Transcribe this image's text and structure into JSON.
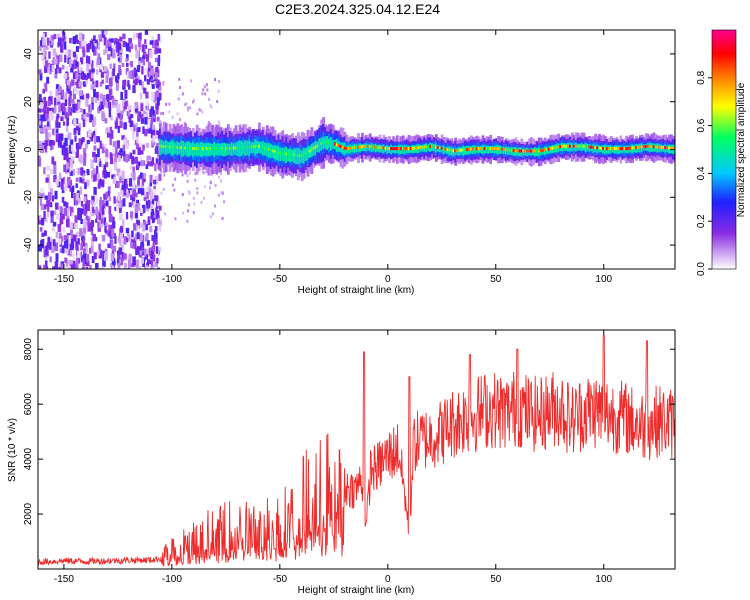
{
  "page": {
    "title": "C2E3.2024.325.04.12.E24"
  },
  "chart_data": [
    {
      "type": "heatmap",
      "xlabel": "Height of straight line (km)",
      "ylabel": "Frequency (Hz)",
      "xlim": [
        -162,
        133
      ],
      "ylim": [
        -50,
        50
      ],
      "xticks": [
        -150,
        -100,
        -50,
        0,
        50,
        100
      ],
      "yticks": [
        -40,
        -20,
        0,
        20,
        40
      ],
      "colorbar": {
        "label": "Normalized spectral amplitude",
        "range": [
          0,
          1
        ],
        "ticks": [
          0.0,
          0.2,
          0.4,
          0.6,
          0.8
        ],
        "colormap": [
          "#ffffff",
          "#d9b8f5",
          "#8a2be2",
          "#2020ff",
          "#00c8ff",
          "#00ff60",
          "#ffff00",
          "#ff8000",
          "#ff0000",
          "#ff0090"
        ]
      },
      "regions": [
        {
          "x_range": [
            -162,
            -106
          ],
          "y_range": [
            -50,
            50
          ],
          "amplitude": 0.25
        },
        {
          "x_range": [
            -106,
            133
          ],
          "y_range": [
            -6,
            7
          ],
          "amplitude": 0.6
        }
      ],
      "ridge": {
        "x": [
          -106,
          -90,
          -75,
          -60,
          -50,
          -40,
          -35,
          -30,
          -25,
          -20,
          -10,
          0,
          10,
          20,
          30,
          40,
          50,
          60,
          70,
          80,
          90,
          100,
          110,
          120,
          133
        ],
        "y": [
          1,
          0,
          0,
          1,
          -2,
          -3,
          0,
          3,
          2,
          0,
          1,
          0,
          0,
          1,
          -1,
          0,
          0,
          -1,
          -1,
          1,
          1,
          0,
          0,
          1,
          0
        ]
      }
    },
    {
      "type": "line",
      "xlabel": "Height of straight line (km)",
      "ylabel": "SNR (10 * v/v)",
      "xlim": [
        -162,
        133
      ],
      "ylim": [
        0,
        8700
      ],
      "xticks": [
        -150,
        -100,
        -50,
        0,
        50,
        100
      ],
      "yticks": [
        2000,
        4000,
        6000,
        8000
      ],
      "color": "#ee2b2b",
      "series": [
        {
          "x": [
            -162,
            -150,
            -140,
            -130,
            -120,
            -110,
            -105,
            -100,
            -95,
            -90,
            -85,
            -80,
            -75,
            -70,
            -65,
            -60,
            -55,
            -50,
            -45,
            -40,
            -35,
            -30,
            -25,
            -20,
            -15,
            -12,
            -10,
            -8,
            -5,
            0,
            5,
            8,
            10,
            12,
            15,
            20,
            25,
            30,
            35,
            40,
            45,
            50,
            55,
            60,
            65,
            70,
            75,
            80,
            85,
            90,
            95,
            100,
            105,
            110,
            115,
            120,
            125,
            133
          ],
          "y": [
            250,
            300,
            280,
            300,
            320,
            330,
            380,
            800,
            1000,
            1100,
            1400,
            1300,
            1500,
            1500,
            1600,
            1300,
            1700,
            1800,
            2000,
            2500,
            2800,
            3000,
            3100,
            3000,
            2900,
            3300,
            1500,
            3600,
            3700,
            4100,
            4400,
            2600,
            1200,
            4600,
            4700,
            4800,
            5000,
            5300,
            5500,
            5600,
            5800,
            5800,
            5700,
            5900,
            5700,
            5600,
            5800,
            5900,
            5400,
            5700,
            5800,
            5700,
            5600,
            5500,
            5300,
            5200,
            5400,
            5300
          ]
        }
      ],
      "spikes": [
        {
          "x": -11,
          "y": 7900
        },
        {
          "x": 10,
          "y": 7000
        },
        {
          "x": 38,
          "y": 7800
        },
        {
          "x": 60,
          "y": 8000
        },
        {
          "x": 100,
          "y": 8500
        },
        {
          "x": 120,
          "y": 8300
        }
      ]
    }
  ]
}
